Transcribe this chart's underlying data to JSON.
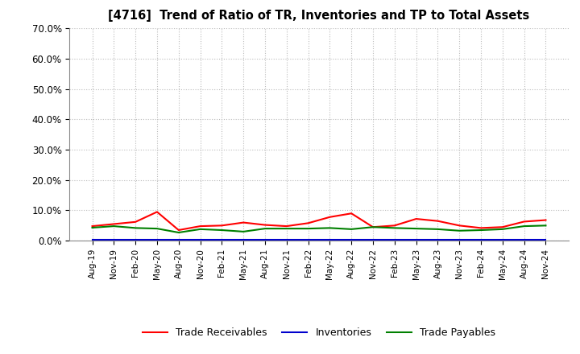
{
  "title": "[4716]  Trend of Ratio of TR, Inventories and TP to Total Assets",
  "xlabels": [
    "Aug-19",
    "Nov-19",
    "Feb-20",
    "May-20",
    "Aug-20",
    "Nov-20",
    "Feb-21",
    "May-21",
    "Aug-21",
    "Nov-21",
    "Feb-22",
    "May-22",
    "Aug-22",
    "Nov-22",
    "Feb-23",
    "May-23",
    "Aug-23",
    "Nov-23",
    "Feb-24",
    "May-24",
    "Aug-24",
    "Nov-24"
  ],
  "trade_receivables": [
    0.048,
    0.055,
    0.062,
    0.095,
    0.035,
    0.048,
    0.05,
    0.06,
    0.052,
    0.048,
    0.058,
    0.078,
    0.09,
    0.045,
    0.05,
    0.072,
    0.065,
    0.05,
    0.042,
    0.045,
    0.063,
    0.068
  ],
  "inventories": [
    0.002,
    0.002,
    0.002,
    0.002,
    0.002,
    0.002,
    0.002,
    0.002,
    0.002,
    0.002,
    0.002,
    0.002,
    0.002,
    0.002,
    0.002,
    0.002,
    0.002,
    0.002,
    0.002,
    0.002,
    0.002,
    0.002
  ],
  "trade_payables": [
    0.043,
    0.048,
    0.042,
    0.04,
    0.027,
    0.038,
    0.035,
    0.03,
    0.04,
    0.04,
    0.04,
    0.042,
    0.038,
    0.045,
    0.042,
    0.04,
    0.038,
    0.033,
    0.035,
    0.038,
    0.048,
    0.05
  ],
  "tr_color": "#ff0000",
  "inv_color": "#0000cd",
  "tp_color": "#008000",
  "ylim": [
    0,
    0.7
  ],
  "yticks": [
    0.0,
    0.1,
    0.2,
    0.3,
    0.4,
    0.5,
    0.6,
    0.7
  ],
  "bg_color": "#ffffff",
  "grid_color": "#bbbbbb",
  "legend_labels": [
    "Trade Receivables",
    "Inventories",
    "Trade Payables"
  ]
}
